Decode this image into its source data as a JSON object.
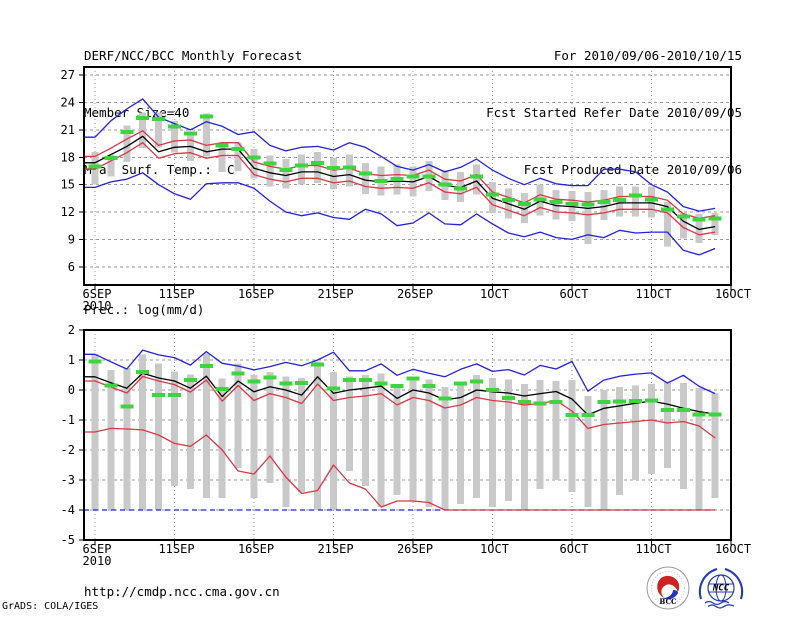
{
  "header": {
    "title": "DERF/NCC/BCC Monthly Forecast",
    "member_size": "Member Size=40",
    "period": "For 2010/09/06-2010/10/15",
    "refer_date": "Fcst Started Refer Date 2010/09/05",
    "produced_date": "Fcst Produced Date 2010/09/06"
  },
  "footer": {
    "url": "http://cmdp.ncc.cma.gov.cn",
    "credit": "GrADS: COLA/IGES",
    "bcc_label": "BCC",
    "ncc_label": "NCC"
  },
  "colors": {
    "blue": "#2222dd",
    "red": "#dc3545",
    "green": "#3ed43e",
    "gray": "#c9c9c9",
    "grid": "#9a9a9a",
    "black": "#000000"
  },
  "chart_data": [
    {
      "type": "line",
      "title": "Mean Surf. Temp.: °C",
      "x_start_date": "6SEP2010",
      "n_days": 40,
      "x_tick_labels": [
        "6SEP",
        "11SEP",
        "16SEP",
        "21SEP",
        "26SEP",
        "1OCT",
        "6OCT",
        "11OCT",
        "16OCT"
      ],
      "x_tick_days": [
        0,
        5,
        10,
        15,
        20,
        25,
        30,
        35,
        40
      ],
      "year_label": "2010",
      "ylim": [
        4.0,
        27.9
      ],
      "yticks": [
        27,
        24,
        21,
        18,
        15,
        12,
        9,
        6
      ],
      "grid": true,
      "legend": "none",
      "series": [
        {
          "name": "ensemble-max",
          "color": "blue",
          "values": [
            20.2,
            22.0,
            23.3,
            24.4,
            22.4,
            21.7,
            21.0,
            21.9,
            21.4,
            20.5,
            20.8,
            19.3,
            18.7,
            19.1,
            19.2,
            18.8,
            19.6,
            19.1,
            18.1,
            17.0,
            16.6,
            17.2,
            16.4,
            16.9,
            17.8,
            16.6,
            15.7,
            15.0,
            15.7,
            15.1,
            14.9,
            14.9,
            16.7,
            16.7,
            16.4,
            15.0,
            14.2,
            12.6,
            12.1,
            12.4
          ]
        },
        {
          "name": "ensemble-min",
          "color": "blue",
          "values": [
            14.7,
            15.3,
            15.6,
            16.3,
            15.0,
            14.0,
            13.4,
            15.1,
            15.2,
            15.2,
            14.6,
            13.2,
            12.0,
            11.6,
            11.9,
            11.4,
            11.2,
            12.3,
            11.8,
            10.5,
            10.8,
            11.9,
            10.7,
            10.6,
            11.8,
            10.7,
            9.7,
            9.3,
            9.8,
            9.2,
            9.0,
            9.5,
            9.2,
            10.0,
            9.7,
            9.8,
            9.8,
            7.8,
            7.3,
            8.0
          ]
        },
        {
          "name": "upper-spread",
          "color": "red",
          "values": [
            18.1,
            19.0,
            20.0,
            20.9,
            19.3,
            19.8,
            19.9,
            19.3,
            19.6,
            19.6,
            17.5,
            17.0,
            16.7,
            17.1,
            17.1,
            16.6,
            16.8,
            16.2,
            16.0,
            16.1,
            16.0,
            16.6,
            15.6,
            15.4,
            16.1,
            14.2,
            13.6,
            13.0,
            13.9,
            13.4,
            13.3,
            13.1,
            13.3,
            13.7,
            13.7,
            13.7,
            13.3,
            11.8,
            11.3,
            11.6
          ]
        },
        {
          "name": "lower-spread",
          "color": "red",
          "values": [
            16.7,
            17.6,
            18.5,
            19.6,
            17.9,
            18.4,
            18.5,
            17.9,
            18.2,
            18.2,
            16.1,
            15.6,
            15.3,
            15.7,
            15.7,
            15.2,
            15.4,
            14.8,
            14.6,
            14.7,
            14.6,
            15.2,
            14.2,
            14.0,
            14.7,
            12.8,
            12.2,
            11.6,
            12.5,
            12.0,
            11.9,
            11.7,
            11.9,
            12.3,
            12.3,
            12.3,
            11.9,
            10.3,
            9.5,
            9.8
          ]
        },
        {
          "name": "ensemble-mean",
          "color": "black",
          "values": [
            17.4,
            18.3,
            19.2,
            20.3,
            18.6,
            19.1,
            19.2,
            18.6,
            18.9,
            18.9,
            16.8,
            16.3,
            16.0,
            16.4,
            16.4,
            15.9,
            16.1,
            15.5,
            15.3,
            15.4,
            15.3,
            15.9,
            14.9,
            14.7,
            15.4,
            13.5,
            12.9,
            12.3,
            13.2,
            12.7,
            12.6,
            12.4,
            12.6,
            13.0,
            13.0,
            13.0,
            12.6,
            11.0,
            10.1,
            10.4
          ]
        }
      ],
      "bars": {
        "name": "member-range",
        "color": "gray",
        "top": [
          18.6,
          18.3,
          21.5,
          22.9,
          22.9,
          22.0,
          20.8,
          22.8,
          19.5,
          19.6,
          18.9,
          18.2,
          17.8,
          18.3,
          18.6,
          18.0,
          18.3,
          17.4,
          17.0,
          17.2,
          17.0,
          17.6,
          16.6,
          16.4,
          17.2,
          15.3,
          14.6,
          14.1,
          15.0,
          14.4,
          14.3,
          14.2,
          14.4,
          14.8,
          14.8,
          14.8,
          13.1,
          11.9,
          11.8,
          11.9
        ],
        "bottom": [
          15.0,
          15.9,
          17.5,
          19.0,
          19.1,
          18.5,
          17.6,
          18.1,
          16.4,
          16.5,
          15.7,
          14.8,
          14.6,
          15.0,
          15.2,
          14.5,
          14.8,
          14.0,
          13.8,
          13.9,
          13.7,
          14.3,
          13.3,
          13.1,
          13.9,
          11.9,
          11.3,
          10.8,
          11.6,
          11.2,
          11.0,
          8.5,
          11.1,
          11.5,
          11.5,
          11.4,
          8.2,
          9.1,
          8.6,
          9.5
        ]
      },
      "dashes": {
        "name": "reference-green-dash",
        "color": "green",
        "values": [
          17.0,
          17.9,
          20.8,
          22.3,
          22.2,
          21.4,
          20.6,
          22.5,
          19.3,
          18.9,
          18.0,
          17.3,
          16.6,
          17.1,
          17.4,
          16.8,
          16.9,
          16.2,
          15.4,
          15.6,
          15.9,
          15.9,
          15.0,
          14.6,
          15.9,
          13.9,
          13.3,
          12.9,
          13.4,
          13.1,
          12.9,
          12.8,
          13.1,
          13.3,
          13.8,
          13.4,
          12.3,
          11.5,
          11.2,
          11.3
        ]
      }
    },
    {
      "type": "line",
      "title": "Prec.: log(mm/d)",
      "x_start_date": "6SEP2010",
      "n_days": 40,
      "x_tick_labels": [
        "6SEP",
        "11SEP",
        "16SEP",
        "21SEP",
        "26SEP",
        "1OCT",
        "6OCT",
        "11OCT",
        "16OCT"
      ],
      "x_tick_days": [
        0,
        5,
        10,
        15,
        20,
        25,
        30,
        35,
        40
      ],
      "year_label": "2010",
      "ylim": [
        -5,
        2
      ],
      "yticks": [
        2,
        1,
        0,
        -1,
        -2,
        -3,
        -4,
        -5
      ],
      "grid": true,
      "legend": "none",
      "series": [
        {
          "name": "ensemble-max",
          "color": "blue",
          "values": [
            1.19,
            0.94,
            0.7,
            1.33,
            1.17,
            1.08,
            0.83,
            1.28,
            0.89,
            0.8,
            0.67,
            0.78,
            0.92,
            0.81,
            1.0,
            1.26,
            0.64,
            0.64,
            0.87,
            0.49,
            0.69,
            0.56,
            0.44,
            0.69,
            0.87,
            0.62,
            0.68,
            0.5,
            0.82,
            0.7,
            0.95,
            -0.04,
            0.33,
            0.46,
            0.53,
            0.57,
            0.23,
            0.49,
            0.12,
            -0.12
          ]
        },
        {
          "name": "ensemble-min",
          "color": "blue",
          "dashed": true,
          "values": [
            -4,
            -4,
            -4,
            -4,
            -4,
            -4,
            -4,
            -4,
            -4,
            -4,
            -4,
            -4,
            -4,
            -4,
            -4,
            -4,
            -4,
            -4,
            -4,
            -4,
            -4,
            -4,
            -4,
            -4,
            -4,
            -4,
            -4,
            -4,
            -4,
            -4,
            -4,
            -4,
            -4,
            -4,
            -4,
            -4,
            -4,
            -4,
            -4,
            -4
          ]
        },
        {
          "name": "upper-spread",
          "color": "red",
          "values": [
            0.3,
            0.1,
            -0.1,
            0.45,
            0.3,
            0.18,
            -0.07,
            0.33,
            -0.37,
            0.15,
            -0.35,
            -0.12,
            -0.25,
            -0.45,
            0.2,
            -0.35,
            -0.25,
            -0.2,
            -0.12,
            -0.5,
            -0.25,
            -0.35,
            -0.6,
            -0.5,
            -0.25,
            -0.35,
            -0.4,
            -0.5,
            -0.45,
            -0.35,
            -0.7,
            -1.28,
            -1.15,
            -1.1,
            -1.05,
            -1.0,
            -1.1,
            -1.05,
            -1.2,
            -1.6
          ]
        },
        {
          "name": "lower-spread",
          "color": "red",
          "values": [
            -1.4,
            -1.28,
            -1.3,
            -1.33,
            -1.5,
            -1.78,
            -1.88,
            -1.5,
            -2.0,
            -2.7,
            -2.8,
            -2.2,
            -2.9,
            -3.45,
            -3.35,
            -2.5,
            -3.1,
            -3.3,
            -3.9,
            -3.7,
            -3.7,
            -3.75,
            -4.0,
            -4.0,
            -4.0,
            -4.0,
            -4.0,
            -4.0,
            -4.0,
            -4.0,
            -4.0,
            -4.0,
            -4.0,
            -4.0,
            -4.0,
            -4.0,
            -4.0,
            -4.0,
            -4.0,
            -4.0
          ]
        },
        {
          "name": "ensemble-mean",
          "color": "black",
          "values": [
            0.44,
            0.24,
            0.06,
            0.56,
            0.4,
            0.3,
            0.06,
            0.46,
            -0.22,
            0.3,
            -0.06,
            0.11,
            0.0,
            -0.17,
            0.44,
            -0.11,
            0.0,
            0.06,
            0.13,
            -0.28,
            0.0,
            -0.1,
            -0.33,
            -0.25,
            0.0,
            -0.06,
            -0.1,
            -0.2,
            -0.12,
            -0.05,
            -0.3,
            -0.83,
            -0.61,
            -0.53,
            -0.44,
            -0.37,
            -0.47,
            -0.61,
            -0.72,
            -0.8
          ]
        }
      ],
      "bars": {
        "name": "member-range",
        "color": "gray",
        "top": [
          1.2,
          0.67,
          0.74,
          1.19,
          0.89,
          0.61,
          0.52,
          1.22,
          0.39,
          0.89,
          0.5,
          0.6,
          0.45,
          0.4,
          0.95,
          0.6,
          0.45,
          0.5,
          0.55,
          0.2,
          0.45,
          0.35,
          0.1,
          0.2,
          0.5,
          0.4,
          0.35,
          0.2,
          0.33,
          0.3,
          0.33,
          -0.2,
          0.0,
          0.1,
          0.15,
          0.2,
          0.28,
          0.23,
          0.07,
          -0.1
        ],
        "bottom": [
          -4,
          -4,
          -4,
          -4,
          -4,
          -3.2,
          -3.3,
          -3.6,
          -3.6,
          -2.6,
          -3.6,
          -3.1,
          -3.9,
          -3.4,
          -4,
          -4,
          -2.7,
          -3.2,
          -3.9,
          -3.5,
          -3.7,
          -3.9,
          -4,
          -3.8,
          -3.6,
          -3.9,
          -3.7,
          -4,
          -3.3,
          -3.0,
          -3.4,
          -3.9,
          -4,
          -3.5,
          -3.0,
          -2.8,
          -2.6,
          -3.3,
          -4,
          -3.6
        ]
      },
      "dashes": {
        "name": "reference-green-dash",
        "color": "green",
        "values": [
          0.95,
          0.15,
          -0.55,
          0.6,
          -0.17,
          -0.17,
          0.33,
          0.8,
          0.03,
          0.55,
          0.28,
          0.42,
          0.22,
          0.24,
          0.85,
          0.05,
          0.33,
          0.33,
          0.22,
          0.13,
          0.38,
          0.13,
          -0.28,
          0.21,
          0.28,
          0.0,
          -0.26,
          -0.4,
          -0.45,
          -0.4,
          -0.83,
          -0.83,
          -0.4,
          -0.38,
          -0.37,
          -0.35,
          -0.67,
          -0.67,
          -0.82,
          -0.82
        ]
      }
    }
  ]
}
